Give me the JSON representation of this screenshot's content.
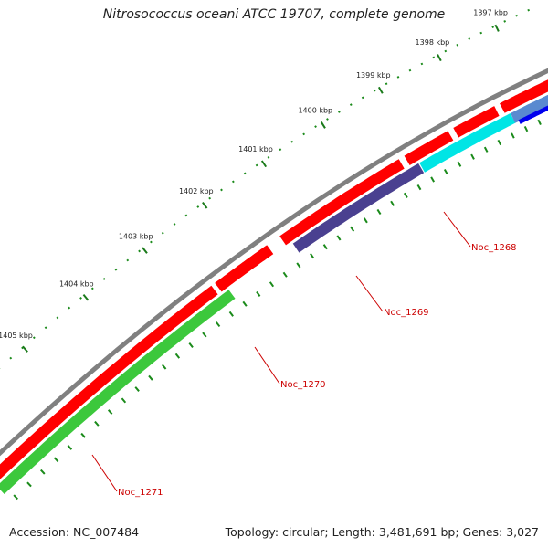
{
  "title": "Nitrosococcus oceani ATCC 19707, complete genome",
  "footer": {
    "accession": "Accession: NC_007484",
    "summary": "Topology: circular; Length: 3,481,691 bp; Genes: 3,027"
  },
  "map": {
    "colors": {
      "backbone": "#808080",
      "cds_forward": "#ff0000",
      "tick_major": "#1a7a1a",
      "tick_minor": "#1a8a1a",
      "label": "#cc0000"
    },
    "tick_labels": [
      "1397 kbp",
      "1398 kbp",
      "1399 kbp",
      "1400 kbp",
      "1401 kbp",
      "1402 kbp",
      "1403 kbp",
      "1404 kbp",
      "1405 kbp"
    ],
    "genes": [
      {
        "name": "Noc_1268",
        "color": "#00e5e5"
      },
      {
        "name": "Noc_1269",
        "color": "#4a4090"
      },
      {
        "name": "Noc_1270",
        "color": "#ff0000"
      },
      {
        "name": "Noc_1271",
        "color": "#3cc83c"
      }
    ],
    "other_features": [
      {
        "color": "#5a8ad0"
      },
      {
        "color": "#0000ee"
      }
    ]
  }
}
